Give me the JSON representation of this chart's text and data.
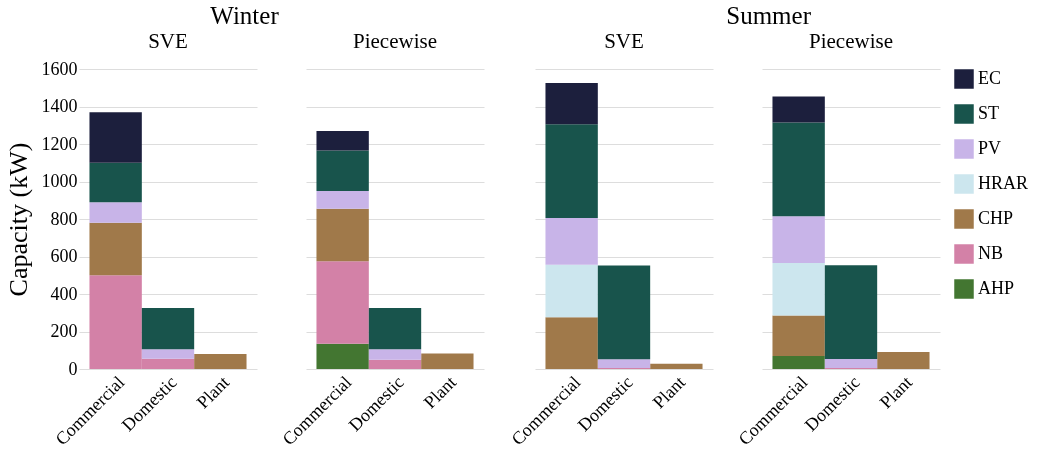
{
  "chart_data": [
    {
      "type": "bar",
      "title": "Winter",
      "annotations": [
        "SVE",
        "Piecewise"
      ],
      "ylabel": "Capacity (kW)",
      "categories": [
        "Commercial",
        "Domestic",
        "Plant",
        "Commercial",
        "Domestic",
        "Plant"
      ],
      "stacked": true,
      "ylim": [
        0,
        1600
      ],
      "yticks": [
        0,
        200,
        400,
        600,
        800,
        1000,
        1200,
        1400,
        1600
      ],
      "grid": "y",
      "series": [
        {
          "color": "#437631",
          "values": [
            null,
            null,
            null,
            135,
            null,
            null
          ]
        },
        {
          "color": "#d381a7",
          "values": [
            500,
            55,
            null,
            440,
            50,
            null
          ]
        },
        {
          "color": "#a0794a",
          "values": [
            280,
            null,
            80,
            280,
            null,
            83
          ]
        },
        {
          "color": "#c8b4e8",
          "values": [
            110,
            50,
            null,
            95,
            55,
            null
          ]
        },
        {
          "color": "#18544c",
          "values": [
            210,
            220,
            null,
            215,
            220,
            null
          ]
        },
        {
          "color": "#1c1f3d",
          "values": [
            270,
            null,
            null,
            105,
            null,
            null
          ]
        }
      ]
    },
    {
      "type": "bar",
      "title": "Summer",
      "annotations": [
        "SVE",
        "Piecewise"
      ],
      "categories": [
        "Commercial",
        "Domestic",
        "Plant",
        "Commercial",
        "Domestic",
        "Plant"
      ],
      "stacked": true,
      "ylim": [
        0,
        1600
      ],
      "yticks": [
        0,
        200,
        400,
        600,
        800,
        1000,
        1200,
        1400,
        1600
      ],
      "grid": "y",
      "tick_labels": "x",
      "legend": "right",
      "series": [
        {
          "name": "AHP",
          "color": "#437631",
          "values": [
            null,
            null,
            null,
            70,
            null,
            null
          ]
        },
        {
          "name": "NB",
          "color": "#d381a7",
          "values": [
            null,
            5,
            null,
            null,
            5,
            null
          ]
        },
        {
          "name": "CHP",
          "color": "#a0794a",
          "values": [
            276,
            null,
            28,
            215,
            null,
            91
          ]
        },
        {
          "name": "HRAR",
          "color": "#cce6ee",
          "values": [
            280,
            null,
            null,
            280,
            null,
            null
          ]
        },
        {
          "name": "PV",
          "color": "#c8b4e8",
          "values": [
            250,
            47,
            null,
            250,
            48,
            null
          ]
        },
        {
          "name": "ST",
          "color": "#18544c",
          "values": [
            500,
            500,
            null,
            500,
            500,
            null
          ]
        },
        {
          "name": "EC",
          "color": "#1c1f3d",
          "values": [
            220,
            null,
            null,
            138,
            null,
            null
          ]
        }
      ]
    }
  ]
}
